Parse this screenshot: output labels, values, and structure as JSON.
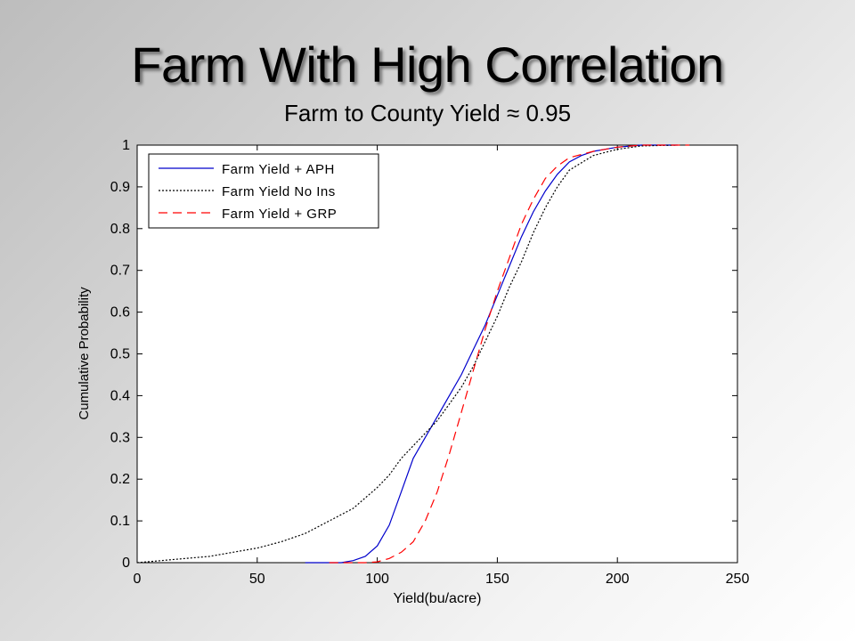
{
  "slide": {
    "title": "Farm With High Correlation",
    "subtitle": "Farm to County Yield ≈ 0.95"
  },
  "chart_data": {
    "type": "line",
    "xlabel": "Yield(bu/acre)",
    "ylabel": "Cumulative Probability",
    "xlim": [
      0,
      250
    ],
    "ylim": [
      0,
      1
    ],
    "xticks": [
      0,
      50,
      100,
      150,
      200,
      250
    ],
    "yticks": [
      0,
      0.1,
      0.2,
      0.3,
      0.4,
      0.5,
      0.6,
      0.7,
      0.8,
      0.9,
      1
    ],
    "legend_position": "top-left",
    "grid": false,
    "series": [
      {
        "name": "Farm Yield + APH",
        "color": "#0000cc",
        "style": "solid",
        "points": [
          [
            70,
            0
          ],
          [
            85,
            0
          ],
          [
            90,
            0.005
          ],
          [
            95,
            0.015
          ],
          [
            100,
            0.04
          ],
          [
            105,
            0.09
          ],
          [
            110,
            0.17
          ],
          [
            115,
            0.25
          ],
          [
            120,
            0.3
          ],
          [
            125,
            0.35
          ],
          [
            130,
            0.4
          ],
          [
            135,
            0.45
          ],
          [
            140,
            0.51
          ],
          [
            145,
            0.57
          ],
          [
            150,
            0.64
          ],
          [
            155,
            0.71
          ],
          [
            160,
            0.78
          ],
          [
            165,
            0.84
          ],
          [
            170,
            0.89
          ],
          [
            175,
            0.93
          ],
          [
            180,
            0.96
          ],
          [
            185,
            0.975
          ],
          [
            190,
            0.985
          ],
          [
            200,
            0.995
          ],
          [
            210,
            1
          ],
          [
            225,
            1
          ]
        ]
      },
      {
        "name": "Farm Yield No Ins",
        "color": "#000000",
        "style": "dotted",
        "points": [
          [
            0,
            0
          ],
          [
            10,
            0.005
          ],
          [
            20,
            0.01
          ],
          [
            30,
            0.015
          ],
          [
            40,
            0.025
          ],
          [
            50,
            0.035
          ],
          [
            60,
            0.05
          ],
          [
            70,
            0.07
          ],
          [
            80,
            0.1
          ],
          [
            90,
            0.13
          ],
          [
            100,
            0.18
          ],
          [
            105,
            0.21
          ],
          [
            110,
            0.25
          ],
          [
            115,
            0.28
          ],
          [
            120,
            0.31
          ],
          [
            125,
            0.34
          ],
          [
            130,
            0.38
          ],
          [
            135,
            0.42
          ],
          [
            140,
            0.47
          ],
          [
            145,
            0.53
          ],
          [
            150,
            0.59
          ],
          [
            155,
            0.66
          ],
          [
            160,
            0.72
          ],
          [
            165,
            0.79
          ],
          [
            170,
            0.85
          ],
          [
            175,
            0.9
          ],
          [
            180,
            0.94
          ],
          [
            190,
            0.975
          ],
          [
            200,
            0.99
          ],
          [
            210,
            0.998
          ],
          [
            225,
            1
          ]
        ]
      },
      {
        "name": "Farm Yield + GRP",
        "color": "#ff0000",
        "style": "dashed",
        "points": [
          [
            80,
            0
          ],
          [
            95,
            0
          ],
          [
            100,
            0.002
          ],
          [
            105,
            0.01
          ],
          [
            110,
            0.025
          ],
          [
            115,
            0.05
          ],
          [
            120,
            0.1
          ],
          [
            125,
            0.17
          ],
          [
            130,
            0.26
          ],
          [
            135,
            0.36
          ],
          [
            140,
            0.46
          ],
          [
            145,
            0.56
          ],
          [
            150,
            0.65
          ],
          [
            155,
            0.73
          ],
          [
            160,
            0.81
          ],
          [
            165,
            0.87
          ],
          [
            170,
            0.92
          ],
          [
            175,
            0.95
          ],
          [
            180,
            0.97
          ],
          [
            190,
            0.985
          ],
          [
            200,
            0.995
          ],
          [
            210,
            1
          ],
          [
            230,
            1
          ]
        ]
      }
    ]
  }
}
